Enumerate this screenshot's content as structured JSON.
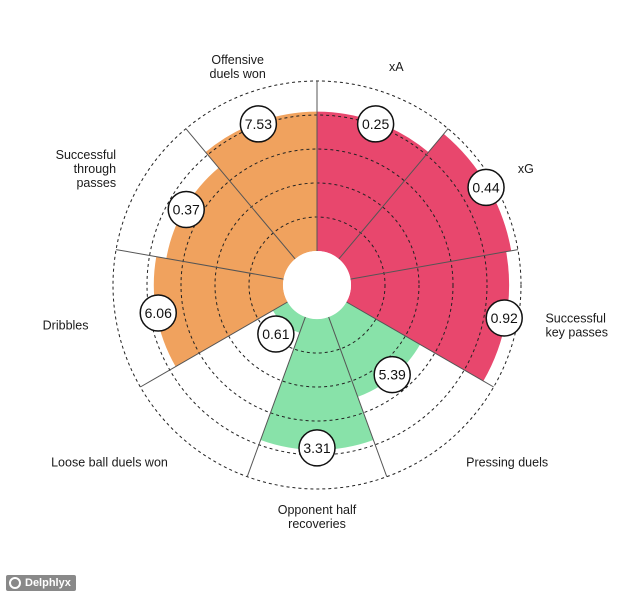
{
  "chart_data": {
    "type": "radial-bar",
    "title": "",
    "max_rings": 5,
    "categories": [
      {
        "label": [
          "xA"
        ],
        "value_label": "0.25",
        "level": 4.1,
        "group": "attack"
      },
      {
        "label": [
          "xG"
        ],
        "value_label": "0.44",
        "level": 4.8,
        "group": "attack"
      },
      {
        "label": [
          "Successful",
          "key passes"
        ],
        "value_label": "0.92",
        "level": 4.65,
        "group": "attack"
      },
      {
        "label": [
          "Pressing duels"
        ],
        "value_label": "5.39",
        "level": 2.5,
        "group": "defence"
      },
      {
        "label": [
          "Opponent half",
          "recoveries"
        ],
        "value_label": "3.31",
        "level": 3.85,
        "group": "defence"
      },
      {
        "label": [
          "Loose ball duels won"
        ],
        "value_label": "0.61",
        "level": 0.5,
        "group": "defence"
      },
      {
        "label": [
          "Dribbles"
        ],
        "value_label": "6.06",
        "level": 3.8,
        "group": "possession"
      },
      {
        "label": [
          "Successful",
          "through",
          "passes"
        ],
        "value_label": "0.37",
        "level": 3.5,
        "group": "possession"
      },
      {
        "label": [
          "Offensive",
          "duels won"
        ],
        "value_label": "7.53",
        "level": 4.1,
        "group": "possession"
      }
    ],
    "colors": {
      "attack": "#e8476d",
      "defence": "#88e2a9",
      "possession": "#f0a25e"
    }
  },
  "brand": {
    "name": "Delphlyx"
  }
}
